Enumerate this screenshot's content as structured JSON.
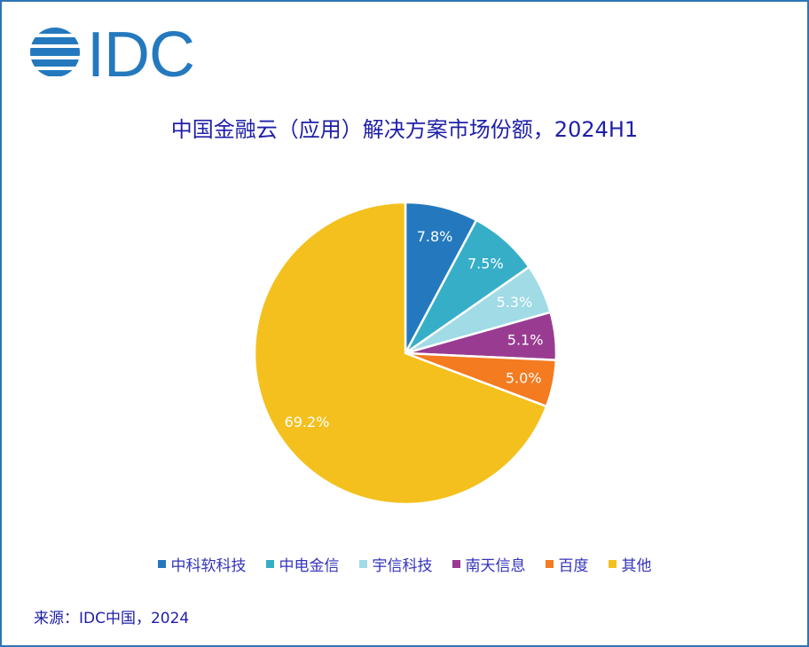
{
  "logo_text": "IDC",
  "chart_data": {
    "type": "pie",
    "title": "中国金融云（应用）解决方案市场份额，2024H1",
    "categories": [
      "中科软科技",
      "中电金信",
      "宇信科技",
      "南天信息",
      "百度",
      "其他"
    ],
    "values": [
      7.8,
      7.5,
      5.3,
      5.1,
      5.0,
      69.2
    ],
    "data_labels": [
      "7.8%",
      "7.5%",
      "5.3%",
      "5.1%",
      "5.0%",
      "69.2%"
    ],
    "colors": [
      "#2479be",
      "#37aec8",
      "#a0dbe6",
      "#993c91",
      "#f47b20",
      "#f4c01e"
    ],
    "legend_position": "bottom",
    "start_angle": "top",
    "direction": "clockwise"
  },
  "source": "来源：IDC中国，2024"
}
